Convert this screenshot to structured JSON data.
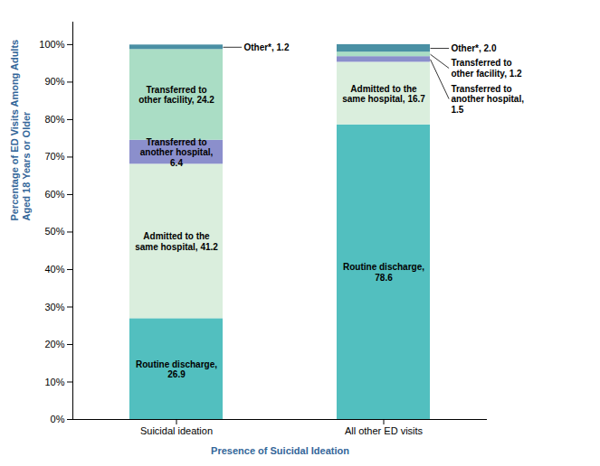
{
  "chart_data": {
    "type": "bar",
    "stacked": true,
    "data_labels": true,
    "grid": false,
    "xlabel": "Presence of Suicidal Ideation",
    "ylabel": "Percentage of ED Visits Among Adults\nAged 18 Years or Older",
    "categories": [
      "Suicidal ideation",
      "All other ED visits"
    ],
    "series": [
      {
        "name": "Routine discharge",
        "color": "#52BFBF",
        "values": [
          26.9,
          78.6
        ],
        "value_labels": [
          "Routine discharge,\n26.9",
          "Routine discharge,\n78.6"
        ]
      },
      {
        "name": "Admitted to the same hospital",
        "color": "#DAEEDD",
        "values": [
          41.2,
          16.7
        ],
        "value_labels": [
          "Admitted to the\nsame hospital, 41.2",
          "Admitted to the\nsame hospital, 16.7"
        ]
      },
      {
        "name": "Transferred to another hospital",
        "color": "#8B8FCC",
        "values": [
          6.4,
          1.5
        ],
        "value_labels": [
          "Transferred to\nanother hospital,\n6.4",
          "Transferred to\nanother hospital,\n1.5"
        ]
      },
      {
        "name": "Transferred to other facility",
        "color": "#AADDC5",
        "values": [
          24.2,
          1.2
        ],
        "value_labels": [
          "Transferred to\nother facility, 24.2",
          "Transferred to\nother facility, 1.2"
        ]
      },
      {
        "name": "Other*",
        "color": "#4A90A4",
        "values": [
          1.2,
          2.0
        ],
        "value_labels": [
          "Other*, 1.2",
          "Other*, 2.0"
        ]
      }
    ],
    "ylim": [
      0,
      106
    ],
    "yticks": [
      {
        "value": 0,
        "label": "0%"
      },
      {
        "value": 10,
        "label": "10%"
      },
      {
        "value": 20,
        "label": "20%"
      },
      {
        "value": 30,
        "label": "30%"
      },
      {
        "value": 40,
        "label": "40%"
      },
      {
        "value": 50,
        "label": "50%"
      },
      {
        "value": 60,
        "label": "60%"
      },
      {
        "value": 70,
        "label": "70%"
      },
      {
        "value": 80,
        "label": "80%"
      },
      {
        "value": 90,
        "label": "90%"
      },
      {
        "value": 100,
        "label": "100%"
      }
    ]
  }
}
